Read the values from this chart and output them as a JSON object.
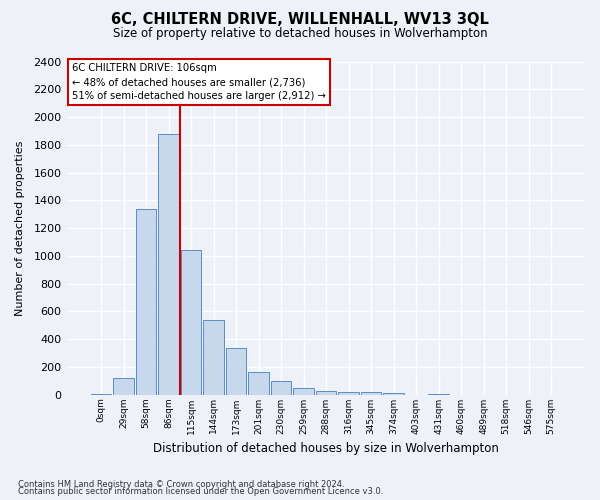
{
  "title": "6C, CHILTERN DRIVE, WILLENHALL, WV13 3QL",
  "subtitle": "Size of property relative to detached houses in Wolverhampton",
  "xlabel": "Distribution of detached houses by size in Wolverhampton",
  "ylabel": "Number of detached properties",
  "footnote1": "Contains HM Land Registry data © Crown copyright and database right 2024.",
  "footnote2": "Contains public sector information licensed under the Open Government Licence v3.0.",
  "bar_labels": [
    "0sqm",
    "29sqm",
    "58sqm",
    "86sqm",
    "115sqm",
    "144sqm",
    "173sqm",
    "201sqm",
    "230sqm",
    "259sqm",
    "288sqm",
    "316sqm",
    "345sqm",
    "374sqm",
    "403sqm",
    "431sqm",
    "460sqm",
    "489sqm",
    "518sqm",
    "546sqm",
    "575sqm"
  ],
  "bar_values": [
    5,
    120,
    1340,
    1880,
    1045,
    540,
    335,
    165,
    100,
    45,
    25,
    20,
    15,
    10,
    0,
    5,
    0,
    0,
    0,
    0,
    0
  ],
  "bar_color": "#c8d8ec",
  "bar_edge_color": "#5b8dc8",
  "ylim": [
    0,
    2400
  ],
  "yticks": [
    0,
    200,
    400,
    600,
    800,
    1000,
    1200,
    1400,
    1600,
    1800,
    2000,
    2200,
    2400
  ],
  "vline_color": "#cc0000",
  "annotation_box_color": "#ffffff",
  "annotation_box_edge": "#cc0000",
  "bg_color": "#eef2f8",
  "grid_color": "#ffffff",
  "property_name": "6C CHILTERN DRIVE: 106sqm",
  "annotation_line1": "← 48% of detached houses are smaller (2,736)",
  "annotation_line2": "51% of semi-detached houses are larger (2,912) →"
}
